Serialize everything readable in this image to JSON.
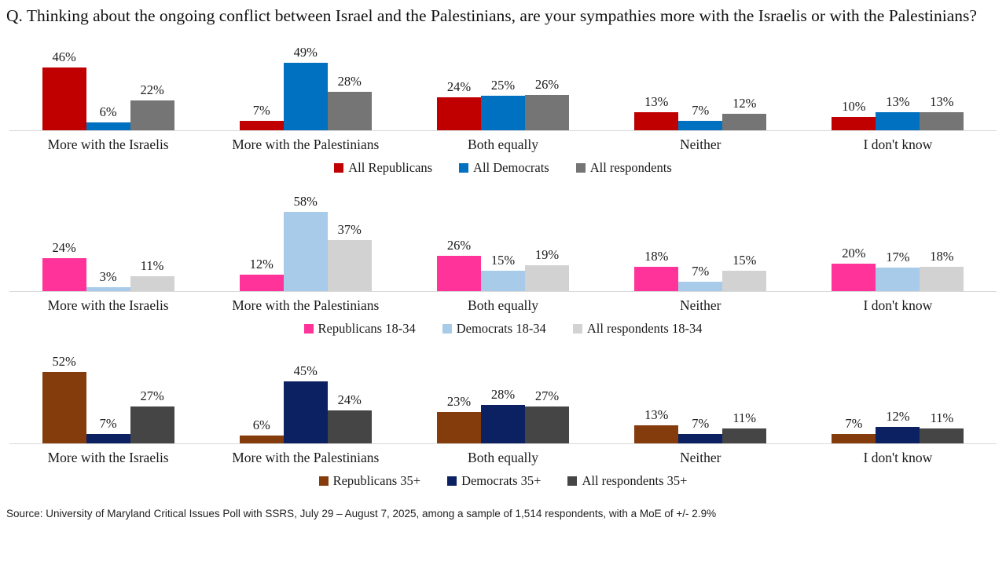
{
  "title": "Q. Thinking about the ongoing conflict between Israel and the Palestinians, are your sympathies more with the Israelis or with the Palestinians?",
  "source": "Source: University of Maryland Critical Issues Poll with SSRS, July 29 – August 7, 2025, among a sample of 1,514 respondents, with a MoE of +/- 2.9%",
  "value_suffix": "%",
  "axis_line_color": "#d9d9d9",
  "chart_data": [
    {
      "type": "bar",
      "categories": [
        "More with the Israelis",
        "More with the Palestinians",
        "Both equally",
        "Neither",
        "I don't know"
      ],
      "series": [
        {
          "name": "All Republicans",
          "color": "#c00000",
          "values": [
            46,
            7,
            24,
            13,
            10
          ]
        },
        {
          "name": "All Democrats",
          "color": "#0070c0",
          "values": [
            6,
            49,
            25,
            7,
            13
          ]
        },
        {
          "name": "All respondents",
          "color": "#757575",
          "values": [
            22,
            28,
            26,
            12,
            13
          ]
        }
      ],
      "grid": false,
      "legend_position": "bottom-center",
      "ylim": [
        0,
        60
      ]
    },
    {
      "type": "bar",
      "categories": [
        "More with the Israelis",
        "More with the Palestinians",
        "Both equally",
        "Neither",
        "I don't know"
      ],
      "series": [
        {
          "name": "Republicans 18-34",
          "color": "#ff3399",
          "values": [
            24,
            12,
            26,
            18,
            20
          ]
        },
        {
          "name": "Democrats 18-34",
          "color": "#a8cbea",
          "values": [
            3,
            58,
            15,
            7,
            17
          ]
        },
        {
          "name": "All respondents 18-34",
          "color": "#d2d2d2",
          "values": [
            11,
            37,
            19,
            15,
            18
          ]
        }
      ],
      "grid": false,
      "legend_position": "bottom-center",
      "ylim": [
        0,
        60
      ]
    },
    {
      "type": "bar",
      "categories": [
        "More with the Israelis",
        "More with the Palestinians",
        "Both equally",
        "Neither",
        "I don't know"
      ],
      "series": [
        {
          "name": "Republicans 35+",
          "color": "#843c0c",
          "values": [
            52,
            6,
            23,
            13,
            7
          ]
        },
        {
          "name": "Democrats 35+",
          "color": "#0c2162",
          "values": [
            7,
            45,
            28,
            7,
            12
          ]
        },
        {
          "name": "All respondents 35+",
          "color": "#454545",
          "values": [
            27,
            24,
            27,
            11,
            11
          ]
        }
      ],
      "grid": false,
      "legend_position": "bottom-center",
      "ylim": [
        0,
        60
      ]
    }
  ]
}
